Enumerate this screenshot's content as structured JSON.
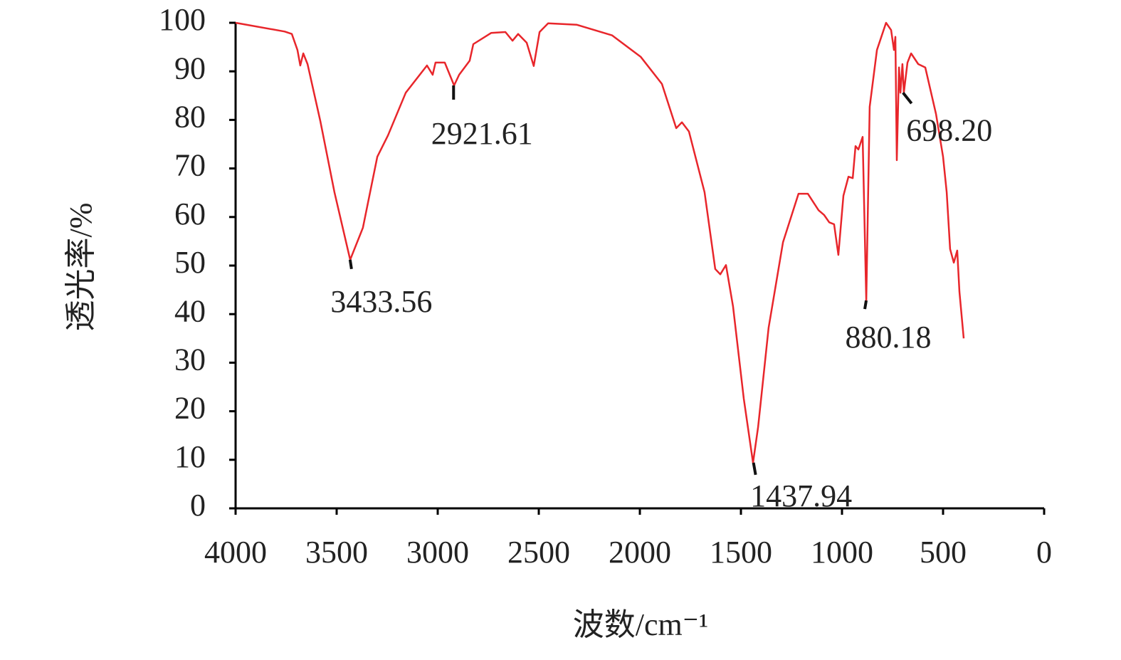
{
  "chart_data": {
    "type": "line",
    "xlabel": "波数/cm⁻¹",
    "ylabel": "透光率/%",
    "xlim": [
      4000,
      0
    ],
    "ylim": [
      0,
      100
    ],
    "xticks": [
      4000,
      3500,
      3000,
      2500,
      2000,
      1500,
      1000,
      500,
      0
    ],
    "yticks": [
      0,
      10,
      20,
      30,
      40,
      50,
      60,
      70,
      80,
      90,
      100
    ],
    "x": [
      4000,
      3757,
      3722,
      3694,
      3680,
      3665,
      3644,
      3581,
      3511,
      3433,
      3370,
      3299,
      3246,
      3158,
      3053,
      3025,
      3011,
      2965,
      2919,
      2894,
      2842,
      2824,
      2736,
      2665,
      2630,
      2602,
      2560,
      2525,
      2496,
      2454,
      2313,
      2137,
      1996,
      1891,
      1820,
      1792,
      1757,
      1680,
      1627,
      1602,
      1574,
      1539,
      1486,
      1440,
      1415,
      1363,
      1292,
      1215,
      1169,
      1116,
      1088,
      1063,
      1039,
      1018,
      993,
      968,
      947,
      933,
      919,
      898,
      880,
      863,
      827,
      782,
      757,
      743,
      736,
      729,
      718,
      711,
      701,
      694,
      676,
      658,
      623,
      588,
      535,
      500,
      482,
      465,
      447,
      430,
      419,
      398
    ],
    "series": [
      {
        "color": "#e8262b",
        "values": [
          100,
          98.2,
          97.7,
          94.4,
          91.2,
          93.7,
          91.5,
          79.8,
          65.1,
          51.2,
          57.8,
          72.4,
          76.8,
          85.6,
          91.2,
          89.3,
          91.8,
          91.8,
          87.1,
          89.3,
          92.2,
          95.6,
          97.9,
          98.1,
          96.3,
          97.7,
          95.9,
          91.1,
          98.1,
          99.9,
          99.6,
          97.4,
          93.0,
          87.4,
          78.3,
          79.5,
          77.6,
          65.1,
          49.3,
          48.2,
          50.1,
          41.6,
          22.6,
          9.4,
          16.7,
          37.2,
          54.8,
          64.8,
          64.8,
          61.4,
          60.4,
          58.9,
          58.5,
          52.2,
          64.4,
          68.3,
          68.0,
          74.6,
          73.9,
          76.5,
          42.8,
          82.7,
          94.4,
          100,
          98.5,
          94.4,
          97.1,
          71.7,
          90.8,
          85.6,
          91.5,
          85.6,
          91.8,
          93.7,
          91.5,
          90.8,
          81.2,
          72.4,
          65.1,
          53.4,
          50.6,
          53.1,
          44.6,
          35.0
        ]
      }
    ],
    "annotations": [
      {
        "label": "3433.56",
        "x": 3433.56,
        "y": 51.2
      },
      {
        "label": "2921.61",
        "x": 2921.61,
        "y": 87.1
      },
      {
        "label": "1437.94",
        "x": 1437.94,
        "y": 9.4
      },
      {
        "label": "880.18",
        "x": 880.18,
        "y": 42.8
      },
      {
        "label": "698.20",
        "x": 698.2,
        "y": 85.6
      }
    ]
  }
}
